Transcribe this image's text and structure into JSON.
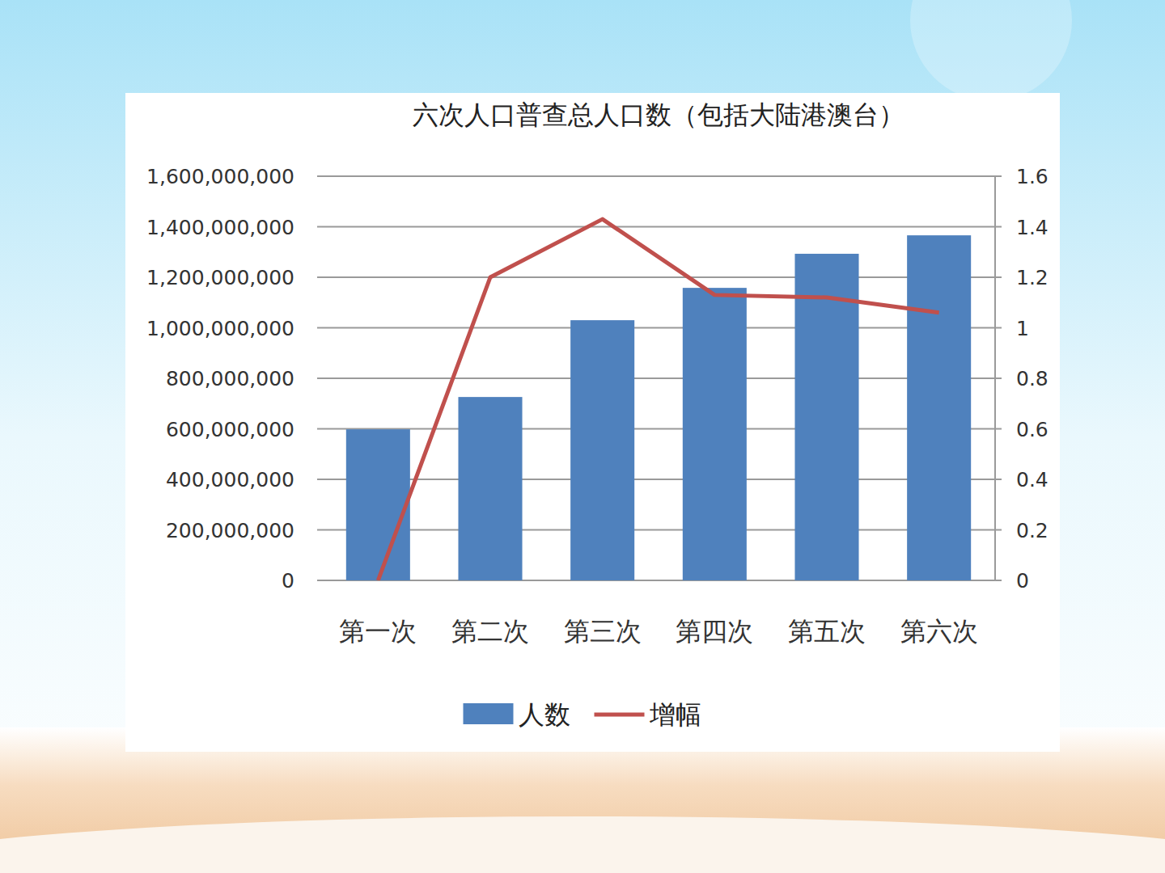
{
  "chart_data": {
    "type": "bar",
    "title": "六次人口普查总人口数（包括大陆港澳台）",
    "categories": [
      "第一次",
      "第二次",
      "第三次",
      "第四次",
      "第五次",
      "第六次"
    ],
    "series": [
      {
        "name": "人数",
        "type": "bar",
        "color": "#4f81bd",
        "values": [
          598000000,
          726000000,
          1030000000,
          1158000000,
          1293000000,
          1366000000
        ]
      },
      {
        "name": "增幅",
        "type": "line",
        "color": "#c0504d",
        "axis": "y2",
        "values": [
          0,
          1.2,
          1.43,
          1.13,
          1.12,
          1.06
        ]
      }
    ],
    "ylim": [
      0,
      1600000000
    ],
    "yticks": [
      0,
      {
        "value": 200000000,
        "label": "200,000,000"
      },
      {
        "value": 400000000,
        "label": "400,000,000"
      },
      {
        "value": 600000000,
        "label": "600,000,000"
      },
      {
        "value": 800000000,
        "label": "800,000,000"
      },
      {
        "value": 1000000000,
        "label": "1,000,000,000"
      },
      {
        "value": 1200000000,
        "label": "1,200,000,000"
      },
      {
        "value": 1400000000,
        "label": "1,400,000,000"
      },
      {
        "value": 1600000000,
        "label": "1,600,000,000"
      }
    ],
    "y2lim": [
      0,
      1.6
    ],
    "y2ticks": [
      0,
      0.2,
      0.4,
      0.6,
      0.8,
      1,
      1.2,
      1.4,
      1.6
    ],
    "grid": true,
    "legend": "bottom"
  }
}
